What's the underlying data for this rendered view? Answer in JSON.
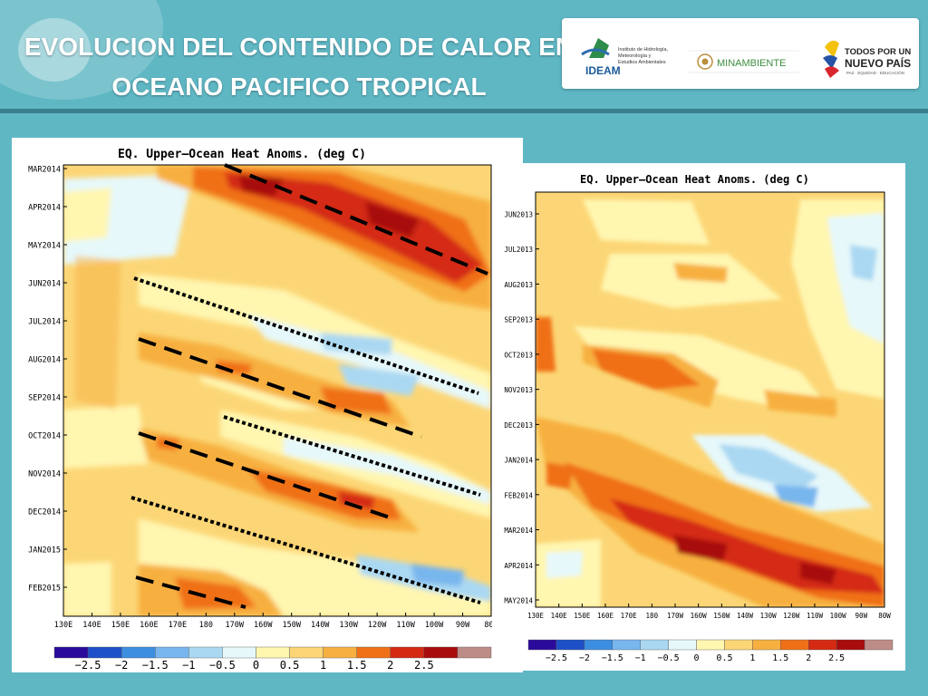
{
  "header": {
    "title_line1": "EVOLUCION DEL CONTENIDO DE CALOR EN",
    "title_line2": "OCEANO PACIFICO TROPICAL"
  },
  "logos": {
    "ideam_name": "IDEAM",
    "ideam_sub": [
      "Instituto de Hidrología,",
      "Meteorología y",
      "Estudios Ambientales"
    ],
    "minambiente": "MINAMBIENTE",
    "todos_line1": "TODOS POR UN",
    "todos_line2": "NUEVO PAÍS",
    "todos_line3": "PAZ · EQUIDAD · EDUCACIÓN"
  },
  "colors": {
    "header_bg": "#5fb7c4",
    "scale": [
      "#2a0a9a",
      "#1d50c8",
      "#3c8ee0",
      "#78b6ee",
      "#aad8f2",
      "#e6f8fa",
      "#fff6b0",
      "#fcd676",
      "#f7b040",
      "#f07018",
      "#d42a12",
      "#a80c0c",
      "#be8c86"
    ]
  },
  "chart_data": [
    {
      "type": "heatmap",
      "title": "EQ. Upper–Ocean Heat Anoms. (deg C)",
      "y_ticks": [
        "MAR2014",
        "APR2014",
        "MAY2014",
        "JUN2014",
        "JUL2014",
        "AUG2014",
        "SEP2014",
        "OCT2014",
        "NOV2014",
        "DEC2014",
        "JAN2015",
        "FEB2015"
      ],
      "x_ticks": [
        "130E",
        "140E",
        "150E",
        "160E",
        "170E",
        "180",
        "170W",
        "160W",
        "150W",
        "140W",
        "130W",
        "120W",
        "110W",
        "100W",
        "90W",
        "80W"
      ],
      "colorbar_labels": [
        "−2.5",
        "−2",
        "−1.5",
        "−1",
        "−0.5",
        "0",
        "0.5",
        "1",
        "1.5",
        "2",
        "2.5"
      ],
      "ylim": [
        "MAR2014",
        "FEB2015"
      ],
      "xlim": [
        "130E",
        "80W"
      ]
    },
    {
      "type": "heatmap",
      "title": "EQ. Upper–Ocean Heat Anoms. (deg C)",
      "y_ticks": [
        "JUN2013",
        "JUL2013",
        "AUG2013",
        "SEP2013",
        "OCT2013",
        "NOV2013",
        "DEC2013",
        "JAN2014",
        "FEB2014",
        "MAR2014",
        "APR2014",
        "MAY2014"
      ],
      "x_ticks": [
        "130E",
        "140E",
        "150E",
        "160E",
        "170E",
        "180",
        "170W",
        "160W",
        "150W",
        "140W",
        "130W",
        "120W",
        "110W",
        "100W",
        "90W",
        "80W"
      ],
      "colorbar_labels": [
        "−2.5",
        "−2",
        "−1.5",
        "−1",
        "−0.5",
        "0",
        "0.5",
        "1",
        "1.5",
        "2",
        "2.5"
      ],
      "ylim": [
        "JUN2013",
        "MAY2014"
      ],
      "xlim": [
        "130E",
        "80W"
      ]
    }
  ]
}
